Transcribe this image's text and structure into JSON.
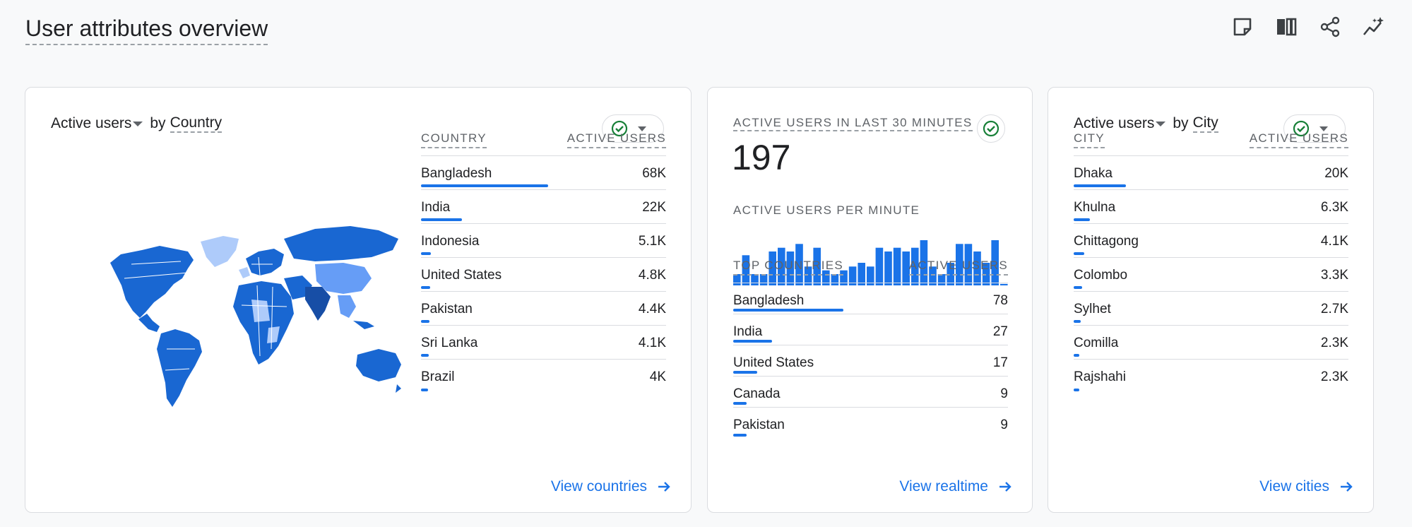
{
  "header": {
    "title": "User attributes overview"
  },
  "toolbar": {
    "icons": [
      "note-icon",
      "compare-icon",
      "share-icon",
      "insights-icon"
    ]
  },
  "country_card": {
    "metric": "Active users",
    "by": "by",
    "dimension": "Country",
    "col1": "COUNTRY",
    "col2": "ACTIVE USERS",
    "rows": [
      {
        "label": "Bangladesh",
        "value": "68K",
        "share": 1.0
      },
      {
        "label": "India",
        "value": "22K",
        "share": 0.32
      },
      {
        "label": "Indonesia",
        "value": "5.1K",
        "share": 0.075
      },
      {
        "label": "United States",
        "value": "4.8K",
        "share": 0.07
      },
      {
        "label": "Pakistan",
        "value": "4.4K",
        "share": 0.065
      },
      {
        "label": "Sri Lanka",
        "value": "4.1K",
        "share": 0.06
      },
      {
        "label": "Brazil",
        "value": "4K",
        "share": 0.058
      }
    ],
    "link": "View countries"
  },
  "realtime_card": {
    "title": "ACTIVE USERS IN LAST 30 MINUTES",
    "number": "197",
    "per_minute_label": "ACTIVE USERS PER MINUTE",
    "per_minute": [
      3,
      8,
      3,
      3,
      9,
      10,
      9,
      11,
      5,
      10,
      4,
      3,
      4,
      5,
      6,
      5,
      10,
      9,
      10,
      9,
      10,
      12,
      5,
      3,
      6,
      11,
      11,
      9,
      6,
      12,
      0.4
    ],
    "col1": "TOP COUNTRIES",
    "col2": "ACTIVE USERS",
    "rows": [
      {
        "label": "Bangladesh",
        "value": "78",
        "share": 1.0
      },
      {
        "label": "India",
        "value": "27",
        "share": 0.35
      },
      {
        "label": "United States",
        "value": "17",
        "share": 0.22
      },
      {
        "label": "Canada",
        "value": "9",
        "share": 0.12
      },
      {
        "label": "Pakistan",
        "value": "9",
        "share": 0.12
      }
    ],
    "link": "View realtime"
  },
  "city_card": {
    "metric": "Active users",
    "by": "by",
    "dimension": "City",
    "col1": "CITY",
    "col2": "ACTIVE USERS",
    "rows": [
      {
        "label": "Dhaka",
        "value": "20K",
        "share": 1.0
      },
      {
        "label": "Khulna",
        "value": "6.3K",
        "share": 0.31
      },
      {
        "label": "Chittagong",
        "value": "4.1K",
        "share": 0.2
      },
      {
        "label": "Colombo",
        "value": "3.3K",
        "share": 0.16
      },
      {
        "label": "Sylhet",
        "value": "2.7K",
        "share": 0.13
      },
      {
        "label": "Comilla",
        "value": "2.3K",
        "share": 0.11
      },
      {
        "label": "Rajshahi",
        "value": "2.3K",
        "share": 0.11
      }
    ],
    "link": "View cities"
  },
  "colors": {
    "accent": "#1a73e8",
    "map_dark": "#1967d2",
    "map_light": "#aecbfa",
    "success": "#188038"
  }
}
